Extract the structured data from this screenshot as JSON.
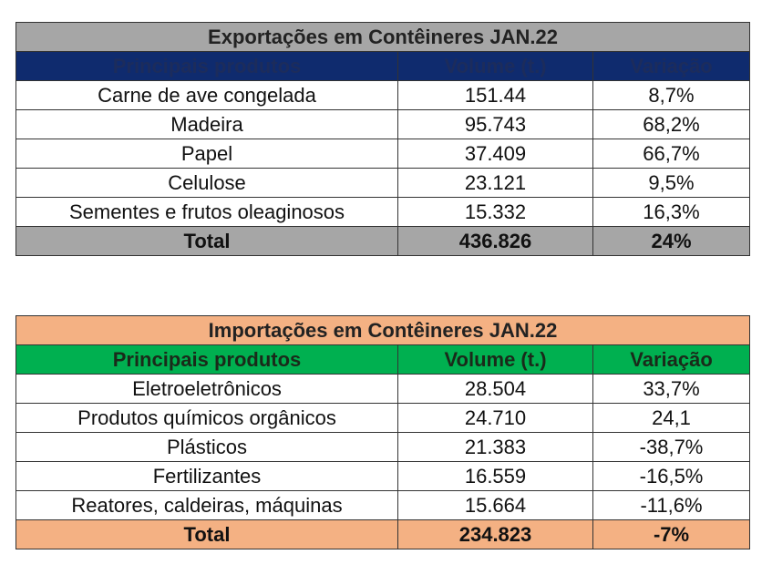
{
  "exports": {
    "title": "Exportações em Contêineres JAN.22",
    "headers": [
      "Principais produtos",
      "Volume (t.)",
      "Variação"
    ],
    "rows": [
      [
        "Carne de ave congelada",
        "151.44",
        "8,7%"
      ],
      [
        "Madeira",
        "95.743",
        "68,2%"
      ],
      [
        "Papel",
        "37.409",
        "66,7%"
      ],
      [
        "Celulose",
        "23.121",
        "9,5%"
      ],
      [
        "Sementes e frutos oleaginosos",
        "15.332",
        "16,3%"
      ]
    ],
    "total": [
      "Total",
      "436.826",
      "24%"
    ]
  },
  "imports": {
    "title": "Importações em Contêineres JAN.22",
    "headers": [
      "Principais produtos",
      "Volume (t.)",
      "Variação"
    ],
    "rows": [
      [
        "Eletroeletrônicos",
        "28.504",
        "33,7%"
      ],
      [
        "Produtos químicos orgânicos",
        "24.710",
        "24,1"
      ],
      [
        "Plásticos",
        "21.383",
        "-38,7%"
      ],
      [
        "Fertilizantes",
        "16.559",
        "-16,5%"
      ],
      [
        "Reatores, caldeiras, máquinas",
        "15.664",
        "-11,6%"
      ]
    ],
    "total": [
      "Total",
      "234.823",
      "-7%"
    ]
  },
  "colors": {
    "gray": "#a6a6a6",
    "navy": "#0f2b6e",
    "orange": "#f4b183",
    "green": "#00b050"
  }
}
